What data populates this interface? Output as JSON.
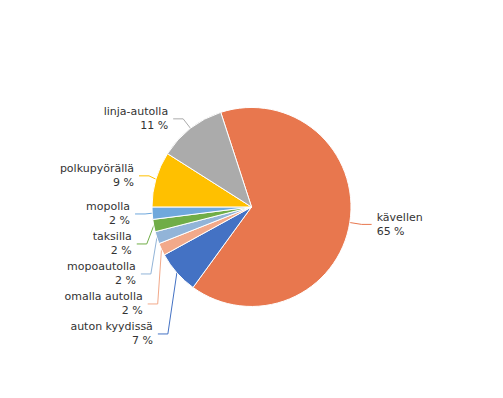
{
  "chart_data": {
    "type": "pie",
    "categories": [
      "kävellen",
      "auton kyydissä",
      "omalla autolla",
      "mopoautolla",
      "taksilla",
      "mopolla",
      "polkupyörällä",
      "linja-autolla"
    ],
    "values": [
      65,
      7,
      2,
      2,
      2,
      2,
      9,
      11
    ],
    "value_labels": [
      "65 %",
      "7 %",
      "2 %",
      "2 %",
      "2 %",
      "2 %",
      "9 %",
      "11 %"
    ],
    "colors": [
      "#E8774E",
      "#4472C4",
      "#F2A98A",
      "#92B4D8",
      "#70AD47",
      "#6FA8DC",
      "#FFC000",
      "#ABABAB"
    ],
    "data_labels": true
  }
}
